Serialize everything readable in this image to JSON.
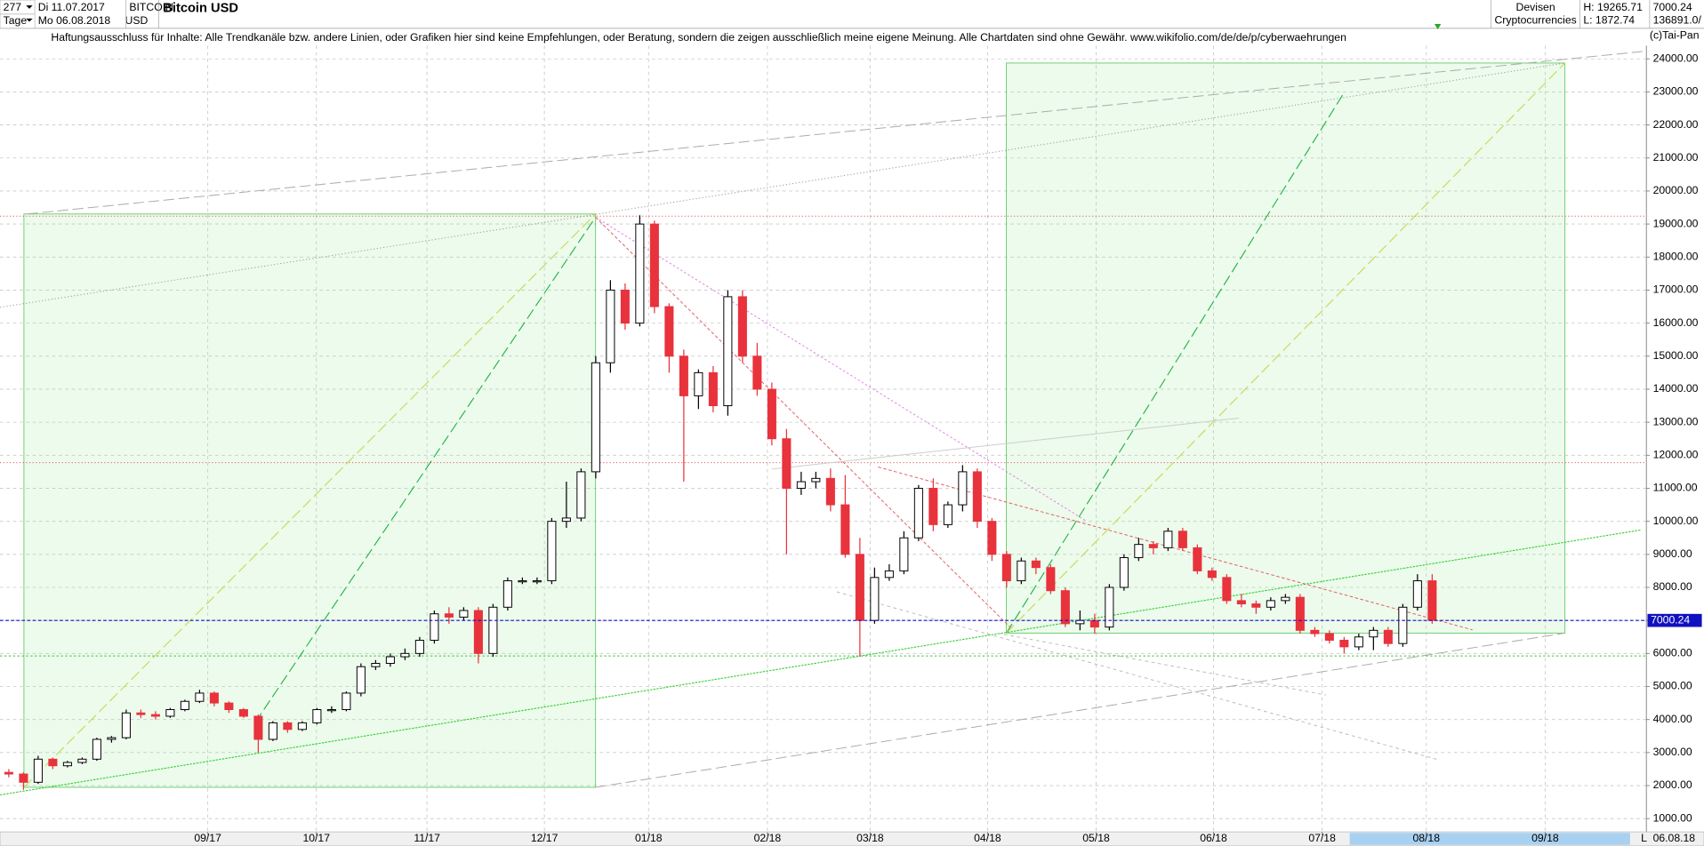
{
  "header": {
    "bars": "277",
    "from_date": "Di 11.07.2017",
    "symbol": "BITCOIN",
    "period": "Tage",
    "to_date": "Mo 06.08.2018",
    "currency": "USD",
    "name": "Bitcoin USD",
    "group": "Devisen",
    "subgroup": "Cryptocurrencies",
    "high": "H: 19265.71",
    "low": "L: 1872.74",
    "last": "7000.24",
    "volume": "136891.0/",
    "disclaimer": "Haftungsausschluss für Inhalte: Alle Trendkanäle bzw. andere Linien, oder Grafiken hier sind keine Empfehlungen, oder Beratung, sondern die zeigen ausschließlich meine eigene Meinung. Alle Chartdaten sind ohne Gewähr.  www.wikifolio.com/de/de/p/cyberwaehrungen",
    "copyright": "(c)Tai-Pan",
    "scale_mode": "L",
    "end_date": "06.08.18"
  },
  "chart_data": {
    "type": "candlestick",
    "title": "Bitcoin USD",
    "up_color": "#ffffff",
    "down_color": "#e8323c",
    "grid": true,
    "current_price": 7000.24,
    "current_price_color": "#1010c0",
    "xlim": [
      -0.6,
      111.6
    ],
    "ylim": [
      600,
      24400
    ],
    "xticks": [
      {
        "value": 13.56,
        "label": "09/17"
      },
      {
        "value": 20.96,
        "label": "10/17"
      },
      {
        "value": 28.5,
        "label": "11/17"
      },
      {
        "value": 36.5,
        "label": "12/17"
      },
      {
        "value": 43.6,
        "label": "01/18"
      },
      {
        "value": 51.7,
        "label": "02/18"
      },
      {
        "value": 58.7,
        "label": "03/18"
      },
      {
        "value": 66.7,
        "label": "04/18"
      },
      {
        "value": 74.1,
        "label": "05/18"
      },
      {
        "value": 82.1,
        "label": "06/18"
      },
      {
        "value": 89.5,
        "label": "07/18"
      },
      {
        "value": 96.6,
        "label": "08/18"
      },
      {
        "value": 104.7,
        "label": "09/18"
      }
    ],
    "yticks": [
      {
        "value": 1000,
        "label": "1000.00"
      },
      {
        "value": 2000,
        "label": "2000.00"
      },
      {
        "value": 3000,
        "label": "3000.00"
      },
      {
        "value": 4000,
        "label": "4000.00"
      },
      {
        "value": 5000,
        "label": "5000.00"
      },
      {
        "value": 6000,
        "label": "6000.00"
      },
      {
        "value": 7000,
        "label": "7000.00"
      },
      {
        "value": 8000,
        "label": "8000.00"
      },
      {
        "value": 9000,
        "label": "9000.00"
      },
      {
        "value": 10000,
        "label": "10000.00"
      },
      {
        "value": 11000,
        "label": "11000.00"
      },
      {
        "value": 12000,
        "label": "12000.00"
      },
      {
        "value": 13000,
        "label": "13000.00"
      },
      {
        "value": 14000,
        "label": "14000.00"
      },
      {
        "value": 15000,
        "label": "15000.00"
      },
      {
        "value": 16000,
        "label": "16000.00"
      },
      {
        "value": 17000,
        "label": "17000.00"
      },
      {
        "value": 18000,
        "label": "18000.00"
      },
      {
        "value": 19000,
        "label": "19000.00"
      },
      {
        "value": 20000,
        "label": "20000.00"
      },
      {
        "value": 21000,
        "label": "21000.00"
      },
      {
        "value": 22000,
        "label": "22000.00"
      },
      {
        "value": 23000,
        "label": "23000.00"
      },
      {
        "value": 24000,
        "label": "24000.00"
      }
    ],
    "open": [
      2400,
      2350,
      2100,
      2800,
      2600,
      2700,
      2800,
      3400,
      3450,
      4200,
      4150,
      4100,
      4300,
      4550,
      4800,
      4500,
      4300,
      4100,
      3400,
      3900,
      3700,
      3900,
      4300,
      4300,
      4800,
      5600,
      5700,
      5900,
      6000,
      6400,
      7200,
      7100,
      7300,
      6000,
      7400,
      8200,
      8200,
      8200,
      10000,
      10100,
      11500,
      14800,
      17000,
      16000,
      19000,
      16500,
      15000,
      13800,
      14500,
      13500,
      16800,
      15000,
      14000,
      12500,
      11000,
      11200,
      11300,
      10500,
      9000,
      7000,
      8300,
      8500,
      9500,
      11000,
      9900,
      10500,
      11500,
      10000,
      9000,
      8200,
      8800,
      8600,
      7900,
      6900,
      7000,
      6800,
      8000,
      8900,
      9300,
      9200,
      9700,
      9200,
      8500,
      8300,
      7600,
      7500,
      7400,
      7600,
      7700,
      6700,
      6600,
      6400,
      6200,
      6500,
      6700,
      6300,
      7400,
      8200
    ],
    "high": [
      2500,
      2400,
      2900,
      2850,
      2750,
      2850,
      3450,
      3500,
      4300,
      4300,
      4250,
      4350,
      4600,
      4900,
      4850,
      4550,
      4350,
      4150,
      3950,
      3950,
      3950,
      4350,
      4400,
      4850,
      5700,
      5800,
      6000,
      6150,
      6500,
      7300,
      7400,
      7400,
      7400,
      7500,
      8300,
      8300,
      8300,
      10100,
      11200,
      11600,
      15000,
      17300,
      17200,
      19265.71,
      19100,
      16600,
      15200,
      14600,
      14700,
      17000,
      17000,
      15400,
      14200,
      12800,
      11500,
      11500,
      11600,
      11400,
      9500,
      8600,
      8700,
      9700,
      11100,
      11300,
      10600,
      11700,
      11600,
      10100,
      9100,
      8900,
      8900,
      8700,
      8000,
      7300,
      7200,
      8100,
      9000,
      9500,
      9400,
      9800,
      9800,
      9300,
      8600,
      8400,
      7800,
      7600,
      7700,
      7800,
      7800,
      6800,
      6700,
      6500,
      6600,
      6800,
      6800,
      7500,
      8400,
      8400
    ],
    "low": [
      2250,
      1872.74,
      2050,
      2500,
      2550,
      2650,
      2750,
      3300,
      3400,
      4050,
      4000,
      4050,
      4250,
      4500,
      4400,
      4200,
      4050,
      3000,
      3350,
      3600,
      3650,
      3850,
      4200,
      4250,
      4700,
      5500,
      5600,
      5800,
      5900,
      6300,
      6900,
      7000,
      5700,
      5900,
      7300,
      8100,
      8100,
      8100,
      9800,
      10000,
      11300,
      14500,
      15800,
      15900,
      16300,
      14500,
      11200,
      13400,
      13300,
      13200,
      14800,
      13800,
      12300,
      9000,
      10800,
      11000,
      10300,
      8900,
      5900,
      6900,
      8200,
      8400,
      9400,
      9700,
      9800,
      10300,
      9800,
      8800,
      8000,
      8100,
      8400,
      7800,
      6800,
      6700,
      6600,
      6700,
      7900,
      8800,
      9000,
      9100,
      9100,
      8400,
      8200,
      7500,
      7400,
      7200,
      7300,
      7500,
      6600,
      6500,
      6300,
      6000,
      6100,
      6100,
      6200,
      6200,
      7300,
      6900
    ],
    "close": [
      2350,
      2100,
      2800,
      2600,
      2700,
      2800,
      3400,
      3450,
      4200,
      4150,
      4100,
      4300,
      4550,
      4800,
      4500,
      4300,
      4100,
      3400,
      3900,
      3700,
      3900,
      4300,
      4300,
      4800,
      5600,
      5700,
      5900,
      6000,
      6400,
      7200,
      7100,
      7300,
      6000,
      7400,
      8200,
      8200,
      8200,
      10000,
      10100,
      11500,
      14800,
      17000,
      16000,
      19000,
      16500,
      15000,
      13800,
      14500,
      13500,
      16800,
      15000,
      14000,
      12500,
      11000,
      11200,
      11300,
      10500,
      9000,
      7000,
      8300,
      8500,
      9500,
      11000,
      9900,
      10500,
      11500,
      10000,
      9000,
      8200,
      8800,
      8600,
      7900,
      6900,
      7000,
      6800,
      8000,
      8900,
      9300,
      9200,
      9700,
      9200,
      8500,
      8300,
      7600,
      7500,
      7400,
      7600,
      7700,
      6700,
      6600,
      6400,
      6200,
      6500,
      6700,
      6300,
      7400,
      8200,
      7000.24
    ]
  }
}
